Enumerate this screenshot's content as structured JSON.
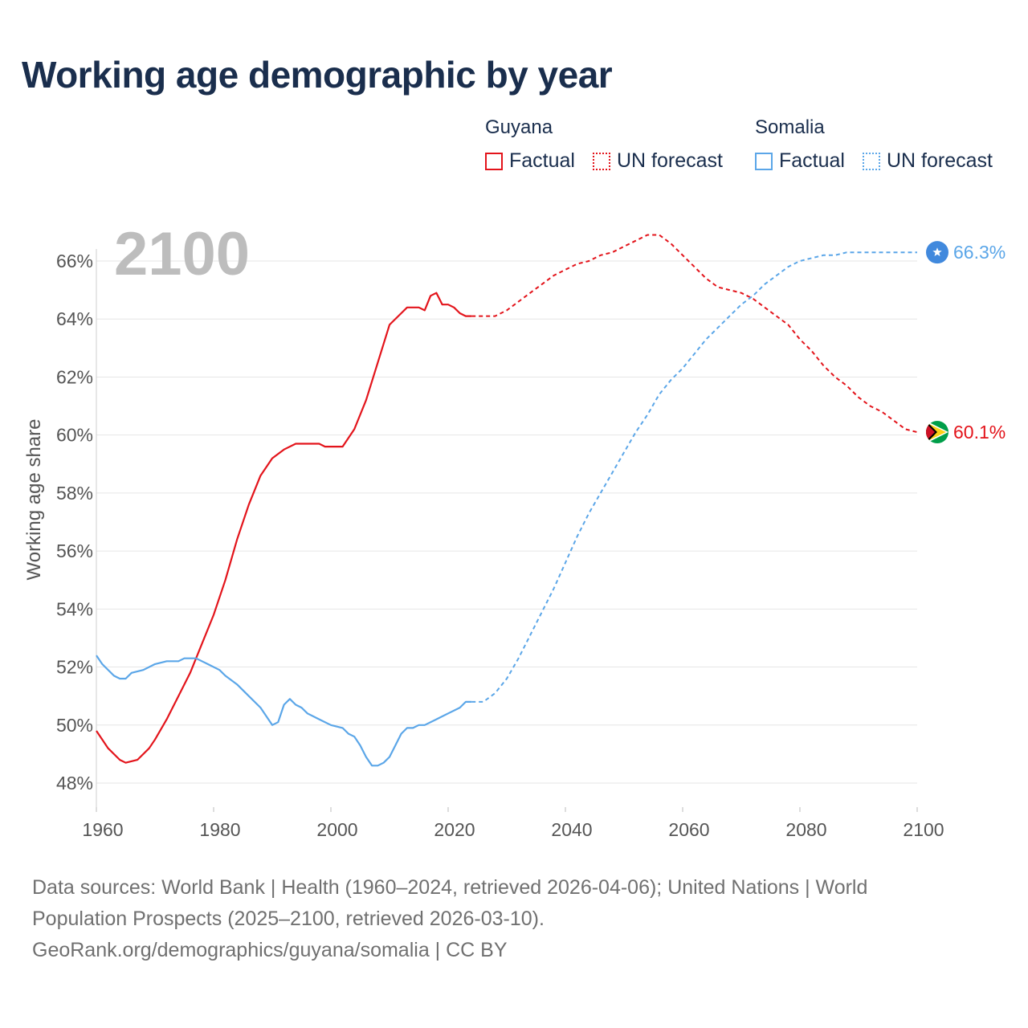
{
  "title": "Working age demographic by year",
  "legend": {
    "groups": [
      {
        "country": "Guyana",
        "factual_label": "Factual",
        "forecast_label": "UN forecast",
        "color": "#e3141b"
      },
      {
        "country": "Somalia",
        "factual_label": "Factual",
        "forecast_label": "UN forecast",
        "color": "#5ba6e8"
      }
    ]
  },
  "year_badge": "2100",
  "sources": {
    "line1": "Data sources: World Bank | Health (1960–2024, retrieved 2026-04-06); United Nations | World",
    "line2": "Population Prospects (2025–2100, retrieved 2026-03-10).",
    "line3": "GeoRank.org/demographics/guyana/somalia | CC BY"
  },
  "chart_data": {
    "type": "line",
    "title": "Working age demographic by year",
    "xlabel": "",
    "ylabel": "Working age share",
    "xlim": [
      1960,
      2100
    ],
    "ylim": [
      47,
      67.5
    ],
    "x_ticks": [
      1960,
      1980,
      2000,
      2020,
      2040,
      2060,
      2080,
      2100
    ],
    "x_tick_labels": [
      "1960",
      "1980",
      "2000",
      "2020",
      "2040",
      "2060",
      "2080",
      "2100"
    ],
    "y_ticks": [
      48,
      50,
      52,
      54,
      56,
      58,
      60,
      62,
      64,
      66
    ],
    "y_tick_labels": [
      "48%",
      "50%",
      "52%",
      "54%",
      "56%",
      "58%",
      "60%",
      "62%",
      "64%",
      "66%"
    ],
    "grid": true,
    "factual_end_year": 2024,
    "series": [
      {
        "name": "Guyana",
        "color": "#e3141b",
        "end_label": "60.1%",
        "marker": "guyana-flag",
        "points": [
          [
            1960,
            49.8
          ],
          [
            1962,
            49.2
          ],
          [
            1964,
            48.8
          ],
          [
            1965,
            48.7
          ],
          [
            1967,
            48.8
          ],
          [
            1969,
            49.2
          ],
          [
            1970,
            49.5
          ],
          [
            1972,
            50.2
          ],
          [
            1974,
            51.0
          ],
          [
            1976,
            51.8
          ],
          [
            1978,
            52.8
          ],
          [
            1980,
            53.8
          ],
          [
            1982,
            55.0
          ],
          [
            1984,
            56.4
          ],
          [
            1986,
            57.6
          ],
          [
            1988,
            58.6
          ],
          [
            1990,
            59.2
          ],
          [
            1992,
            59.5
          ],
          [
            1994,
            59.7
          ],
          [
            1996,
            59.7
          ],
          [
            1998,
            59.7
          ],
          [
            1999,
            59.6
          ],
          [
            2000,
            59.6
          ],
          [
            2002,
            59.6
          ],
          [
            2003,
            59.9
          ],
          [
            2004,
            60.2
          ],
          [
            2006,
            61.2
          ],
          [
            2008,
            62.5
          ],
          [
            2010,
            63.8
          ],
          [
            2012,
            64.2
          ],
          [
            2013,
            64.4
          ],
          [
            2015,
            64.4
          ],
          [
            2016,
            64.3
          ],
          [
            2017,
            64.8
          ],
          [
            2018,
            64.9
          ],
          [
            2019,
            64.5
          ],
          [
            2020,
            64.5
          ],
          [
            2021,
            64.4
          ],
          [
            2022,
            64.2
          ],
          [
            2023,
            64.1
          ],
          [
            2024,
            64.1
          ],
          [
            2026,
            64.1
          ],
          [
            2028,
            64.1
          ],
          [
            2030,
            64.3
          ],
          [
            2032,
            64.6
          ],
          [
            2034,
            64.9
          ],
          [
            2036,
            65.2
          ],
          [
            2038,
            65.5
          ],
          [
            2040,
            65.7
          ],
          [
            2042,
            65.9
          ],
          [
            2044,
            66.0
          ],
          [
            2046,
            66.2
          ],
          [
            2048,
            66.3
          ],
          [
            2050,
            66.5
          ],
          [
            2052,
            66.7
          ],
          [
            2054,
            66.9
          ],
          [
            2056,
            66.9
          ],
          [
            2058,
            66.6
          ],
          [
            2060,
            66.2
          ],
          [
            2062,
            65.8
          ],
          [
            2064,
            65.4
          ],
          [
            2066,
            65.1
          ],
          [
            2068,
            65.0
          ],
          [
            2070,
            64.9
          ],
          [
            2072,
            64.7
          ],
          [
            2074,
            64.4
          ],
          [
            2076,
            64.1
          ],
          [
            2078,
            63.8
          ],
          [
            2080,
            63.3
          ],
          [
            2082,
            62.9
          ],
          [
            2084,
            62.4
          ],
          [
            2086,
            62.0
          ],
          [
            2088,
            61.7
          ],
          [
            2090,
            61.3
          ],
          [
            2092,
            61.0
          ],
          [
            2094,
            60.8
          ],
          [
            2096,
            60.5
          ],
          [
            2098,
            60.2
          ],
          [
            2100,
            60.1
          ]
        ]
      },
      {
        "name": "Somalia",
        "color": "#5ba6e8",
        "end_label": "66.3%",
        "marker": "somalia-flag",
        "points": [
          [
            1960,
            52.4
          ],
          [
            1961,
            52.1
          ],
          [
            1963,
            51.7
          ],
          [
            1964,
            51.6
          ],
          [
            1965,
            51.6
          ],
          [
            1966,
            51.8
          ],
          [
            1968,
            51.9
          ],
          [
            1970,
            52.1
          ],
          [
            1972,
            52.2
          ],
          [
            1974,
            52.2
          ],
          [
            1975,
            52.3
          ],
          [
            1977,
            52.3
          ],
          [
            1979,
            52.1
          ],
          [
            1981,
            51.9
          ],
          [
            1982,
            51.7
          ],
          [
            1984,
            51.4
          ],
          [
            1986,
            51.0
          ],
          [
            1988,
            50.6
          ],
          [
            1990,
            50.0
          ],
          [
            1991,
            50.1
          ],
          [
            1992,
            50.7
          ],
          [
            1993,
            50.9
          ],
          [
            1994,
            50.7
          ],
          [
            1995,
            50.6
          ],
          [
            1996,
            50.4
          ],
          [
            1998,
            50.2
          ],
          [
            2000,
            50.0
          ],
          [
            2002,
            49.9
          ],
          [
            2003,
            49.7
          ],
          [
            2004,
            49.6
          ],
          [
            2005,
            49.3
          ],
          [
            2006,
            48.9
          ],
          [
            2007,
            48.6
          ],
          [
            2008,
            48.6
          ],
          [
            2009,
            48.7
          ],
          [
            2010,
            48.9
          ],
          [
            2011,
            49.3
          ],
          [
            2012,
            49.7
          ],
          [
            2013,
            49.9
          ],
          [
            2014,
            49.9
          ],
          [
            2015,
            50.0
          ],
          [
            2016,
            50.0
          ],
          [
            2018,
            50.2
          ],
          [
            2020,
            50.4
          ],
          [
            2022,
            50.6
          ],
          [
            2023,
            50.8
          ],
          [
            2024,
            50.8
          ],
          [
            2026,
            50.8
          ],
          [
            2028,
            51.1
          ],
          [
            2030,
            51.6
          ],
          [
            2032,
            52.3
          ],
          [
            2034,
            53.1
          ],
          [
            2036,
            53.9
          ],
          [
            2038,
            54.7
          ],
          [
            2040,
            55.6
          ],
          [
            2042,
            56.5
          ],
          [
            2044,
            57.3
          ],
          [
            2046,
            58.0
          ],
          [
            2048,
            58.7
          ],
          [
            2050,
            59.4
          ],
          [
            2052,
            60.1
          ],
          [
            2054,
            60.7
          ],
          [
            2056,
            61.4
          ],
          [
            2058,
            61.9
          ],
          [
            2060,
            62.3
          ],
          [
            2062,
            62.8
          ],
          [
            2064,
            63.3
          ],
          [
            2066,
            63.7
          ],
          [
            2068,
            64.1
          ],
          [
            2070,
            64.5
          ],
          [
            2072,
            64.8
          ],
          [
            2074,
            65.2
          ],
          [
            2076,
            65.5
          ],
          [
            2078,
            65.8
          ],
          [
            2080,
            66.0
          ],
          [
            2082,
            66.1
          ],
          [
            2084,
            66.2
          ],
          [
            2086,
            66.2
          ],
          [
            2088,
            66.3
          ],
          [
            2090,
            66.3
          ],
          [
            2092,
            66.3
          ],
          [
            2094,
            66.3
          ],
          [
            2096,
            66.3
          ],
          [
            2098,
            66.3
          ],
          [
            2100,
            66.3
          ]
        ]
      }
    ]
  }
}
